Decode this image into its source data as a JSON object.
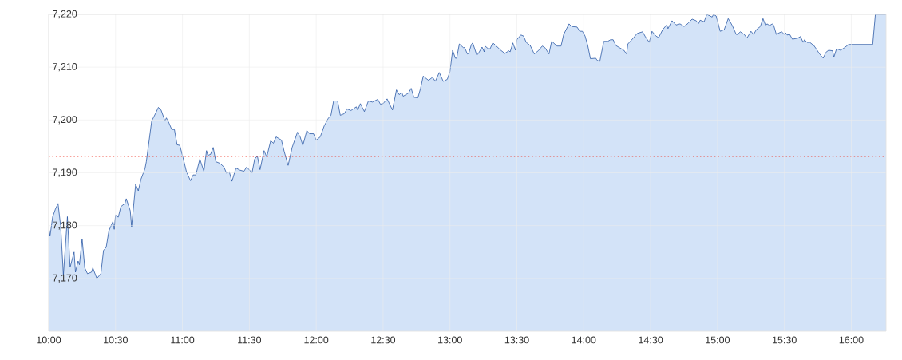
{
  "chart_data": {
    "type": "area",
    "x": [
      10.0,
      10.01,
      10.03,
      10.05,
      10.07,
      10.09,
      10.11,
      10.14,
      10.16,
      10.19,
      10.2,
      10.22,
      10.23,
      10.25,
      10.27,
      10.29,
      10.32,
      10.33,
      10.36,
      10.39,
      10.41,
      10.43,
      10.45,
      10.48,
      10.49,
      10.5,
      10.52,
      10.54,
      10.57,
      10.58,
      10.61,
      10.62,
      10.65,
      10.67,
      10.69,
      10.72,
      10.73,
      10.77,
      10.8,
      10.82,
      10.84,
      10.87,
      10.88,
      10.9,
      10.92,
      10.94,
      10.96,
      10.98,
      11.0,
      11.03,
      11.06,
      11.08,
      11.1,
      11.13,
      11.16,
      11.18,
      11.19,
      11.21,
      11.23,
      11.25,
      11.28,
      11.31,
      11.33,
      11.35,
      11.37,
      11.4,
      11.43,
      11.46,
      11.48,
      11.52,
      11.54,
      11.56,
      11.58,
      11.61,
      11.63,
      11.66,
      11.68,
      11.7,
      11.74,
      11.76,
      11.79,
      11.82,
      11.86,
      11.88,
      11.9,
      11.93,
      11.95,
      11.98,
      12.0,
      12.03,
      12.06,
      12.09,
      12.11,
      12.13,
      12.16,
      12.18,
      12.21,
      12.23,
      12.26,
      12.3,
      12.31,
      12.33,
      12.36,
      12.39,
      12.42,
      12.46,
      12.48,
      12.5,
      12.53,
      12.57,
      12.6,
      12.62,
      12.64,
      12.65,
      12.69,
      12.71,
      12.73,
      12.76,
      12.78,
      12.8,
      12.84,
      12.87,
      12.89,
      12.92,
      12.95,
      12.98,
      13.0,
      13.02,
      13.04,
      13.05,
      13.07,
      13.1,
      13.11,
      13.13,
      13.14,
      13.16,
      13.17,
      13.2,
      13.21,
      13.24,
      13.256,
      13.262,
      13.29,
      13.3,
      13.32,
      13.33,
      13.38,
      13.41,
      13.44,
      13.45,
      13.47,
      13.49,
      13.5,
      13.53,
      13.55,
      13.57,
      13.6,
      13.63,
      13.66,
      13.69,
      13.71,
      13.74,
      13.76,
      13.77,
      13.8,
      13.83,
      13.85,
      13.89,
      13.91,
      13.95,
      13.97,
      13.99,
      14.01,
      14.03,
      14.05,
      14.09,
      14.1,
      14.12,
      14.15,
      14.18,
      14.2,
      14.22,
      14.24,
      14.28,
      14.3,
      14.32,
      14.33,
      14.37,
      14.4,
      14.44,
      14.46,
      14.49,
      14.51,
      14.54,
      14.56,
      14.59,
      14.62,
      14.63,
      14.66,
      14.69,
      14.72,
      14.75,
      14.78,
      14.81,
      14.84,
      14.86,
      14.87,
      14.9,
      14.92,
      14.96,
      14.97,
      14.99,
      15.02,
      15.05,
      15.08,
      15.09,
      15.11,
      15.14,
      15.15,
      15.17,
      15.2,
      15.22,
      15.25,
      15.27,
      15.29,
      15.32,
      15.34,
      15.36,
      15.37,
      15.39,
      15.41,
      15.42,
      15.44,
      15.46,
      15.48,
      15.5,
      15.51,
      15.52,
      15.54,
      15.56,
      15.6,
      15.62,
      15.64,
      15.65,
      15.67,
      15.69,
      15.72,
      15.74,
      15.76,
      15.77,
      15.79,
      15.81,
      15.83,
      15.86,
      15.87,
      15.89,
      15.92,
      15.95,
      15.98,
      16.16,
      16.18,
      16.26
    ],
    "series": [
      {
        "color": "#1f4fa0",
        "values": [
          7179.8,
          7178.0,
          7181.7,
          7183.1,
          7184.2,
          7179.8,
          7170.6,
          7181.7,
          7172.1,
          7175.0,
          7171.2,
          7173.3,
          7172.6,
          7177.5,
          7172.0,
          7170.9,
          7171.2,
          7172.0,
          7170.0,
          7170.9,
          7175.3,
          7175.9,
          7179.0,
          7180.8,
          7179.3,
          7182.0,
          7181.6,
          7183.6,
          7184.2,
          7185.1,
          7182.8,
          7179.8,
          7187.8,
          7186.6,
          7188.8,
          7190.8,
          7192.1,
          7199.8,
          7201.3,
          7202.4,
          7201.9,
          7199.8,
          7200.4,
          7199.4,
          7198.2,
          7198.2,
          7195.3,
          7195.2,
          7193.3,
          7190.2,
          7188.5,
          7189.6,
          7189.6,
          7192.6,
          7190.3,
          7194.2,
          7193.3,
          7193.5,
          7194.8,
          7192.1,
          7191.8,
          7191.1,
          7189.9,
          7190.2,
          7188.4,
          7190.9,
          7190.5,
          7190.3,
          7191.1,
          7190.0,
          7192.6,
          7193.2,
          7190.6,
          7194.2,
          7193.0,
          7196.1,
          7195.6,
          7196.8,
          7196.2,
          7194.1,
          7191.4,
          7194.8,
          7197.7,
          7196.8,
          7195.2,
          7198.0,
          7197.4,
          7197.4,
          7196.2,
          7196.8,
          7198.9,
          7200.3,
          7200.9,
          7203.6,
          7203.6,
          7200.9,
          7201.2,
          7202.1,
          7201.8,
          7202.5,
          7201.9,
          7203.1,
          7201.6,
          7203.6,
          7203.4,
          7203.9,
          7203.0,
          7203.1,
          7204.0,
          7201.9,
          7205.7,
          7204.8,
          7205.2,
          7204.5,
          7205.1,
          7206.0,
          7204.3,
          7204.2,
          7206.0,
          7208.3,
          7207.5,
          7208.1,
          7207.3,
          7209.0,
          7207.3,
          7207.7,
          7209.2,
          7213.2,
          7211.7,
          7211.7,
          7214.4,
          7213.7,
          7213.7,
          7212.5,
          7212.6,
          7214.3,
          7214.6,
          7212.3,
          7212.5,
          7213.8,
          7212.9,
          7214.0,
          7213.4,
          7213.5,
          7214.6,
          7214.4,
          7213.2,
          7212.6,
          7213.1,
          7212.9,
          7214.6,
          7213.2,
          7215.2,
          7216.1,
          7215.9,
          7214.7,
          7214.1,
          7212.5,
          7213.1,
          7214.0,
          7213.7,
          7212.5,
          7214.9,
          7214.7,
          7214.0,
          7214.0,
          7216.2,
          7218.2,
          7217.7,
          7217.6,
          7216.8,
          7216.8,
          7215.9,
          7214.1,
          7211.6,
          7211.7,
          7211.3,
          7211.1,
          7214.9,
          7214.9,
          7215.2,
          7215.2,
          7214.1,
          7213.5,
          7213.2,
          7212.5,
          7214.4,
          7215.5,
          7216.4,
          7216.7,
          7215.8,
          7214.7,
          7216.8,
          7215.9,
          7215.6,
          7217.1,
          7218.0,
          7217.3,
          7218.8,
          7218.0,
          7218.2,
          7217.7,
          7218.3,
          7219.1,
          7218.8,
          7218.3,
          7218.9,
          7218.6,
          7220.0,
          7219.5,
          7220.0,
          7219.7,
          7216.8,
          7217.1,
          7219.2,
          7218.8,
          7217.9,
          7216.2,
          7216.2,
          7216.7,
          7216.2,
          7215.5,
          7216.8,
          7216.2,
          7217.1,
          7217.7,
          7219.2,
          7217.9,
          7218.2,
          7217.9,
          7218.2,
          7217.9,
          7216.2,
          7216.5,
          7216.7,
          7216.2,
          7216.5,
          7216.1,
          7216.2,
          7215.3,
          7215.5,
          7215.8,
          7214.7,
          7215.2,
          7214.7,
          7214.7,
          7214.1,
          7213.4,
          7212.6,
          7212.3,
          7211.7,
          7212.8,
          7213.2,
          7213.1,
          7211.9,
          7213.5,
          7213.2,
          7213.7,
          7214.3,
          7214.3,
          7220.0,
          7220.0
        ]
      }
    ],
    "xlim": [
      10,
      16.26
    ],
    "ylim": [
      7160,
      7220
    ],
    "xticks": [
      {
        "value": 10,
        "label": "10:00"
      },
      {
        "value": 10.5,
        "label": "10:30"
      },
      {
        "value": 11,
        "label": "11:00"
      },
      {
        "value": 11.5,
        "label": "11:30"
      },
      {
        "value": 12,
        "label": "12:00"
      },
      {
        "value": 12.5,
        "label": "12:30"
      },
      {
        "value": 13,
        "label": "13:00"
      },
      {
        "value": 13.5,
        "label": "13:30"
      },
      {
        "value": 14,
        "label": "14:00"
      },
      {
        "value": 14.5,
        "label": "14:30"
      },
      {
        "value": 15,
        "label": "15:00"
      },
      {
        "value": 15.5,
        "label": "15:30"
      },
      {
        "value": 16,
        "label": "16:00"
      }
    ],
    "yticks": [
      {
        "value": 7170,
        "label": "7,170"
      },
      {
        "value": 7180,
        "label": "7,180"
      },
      {
        "value": 7190,
        "label": "7,190"
      },
      {
        "value": 7200,
        "label": "7,200"
      },
      {
        "value": 7210,
        "label": "7,210"
      },
      {
        "value": 7220,
        "label": "7,220"
      }
    ],
    "ref_lines": [
      {
        "axis": "y",
        "value": 7193.1,
        "color": "#f03c2e",
        "line_style": "dotted"
      }
    ],
    "grid": true
  }
}
